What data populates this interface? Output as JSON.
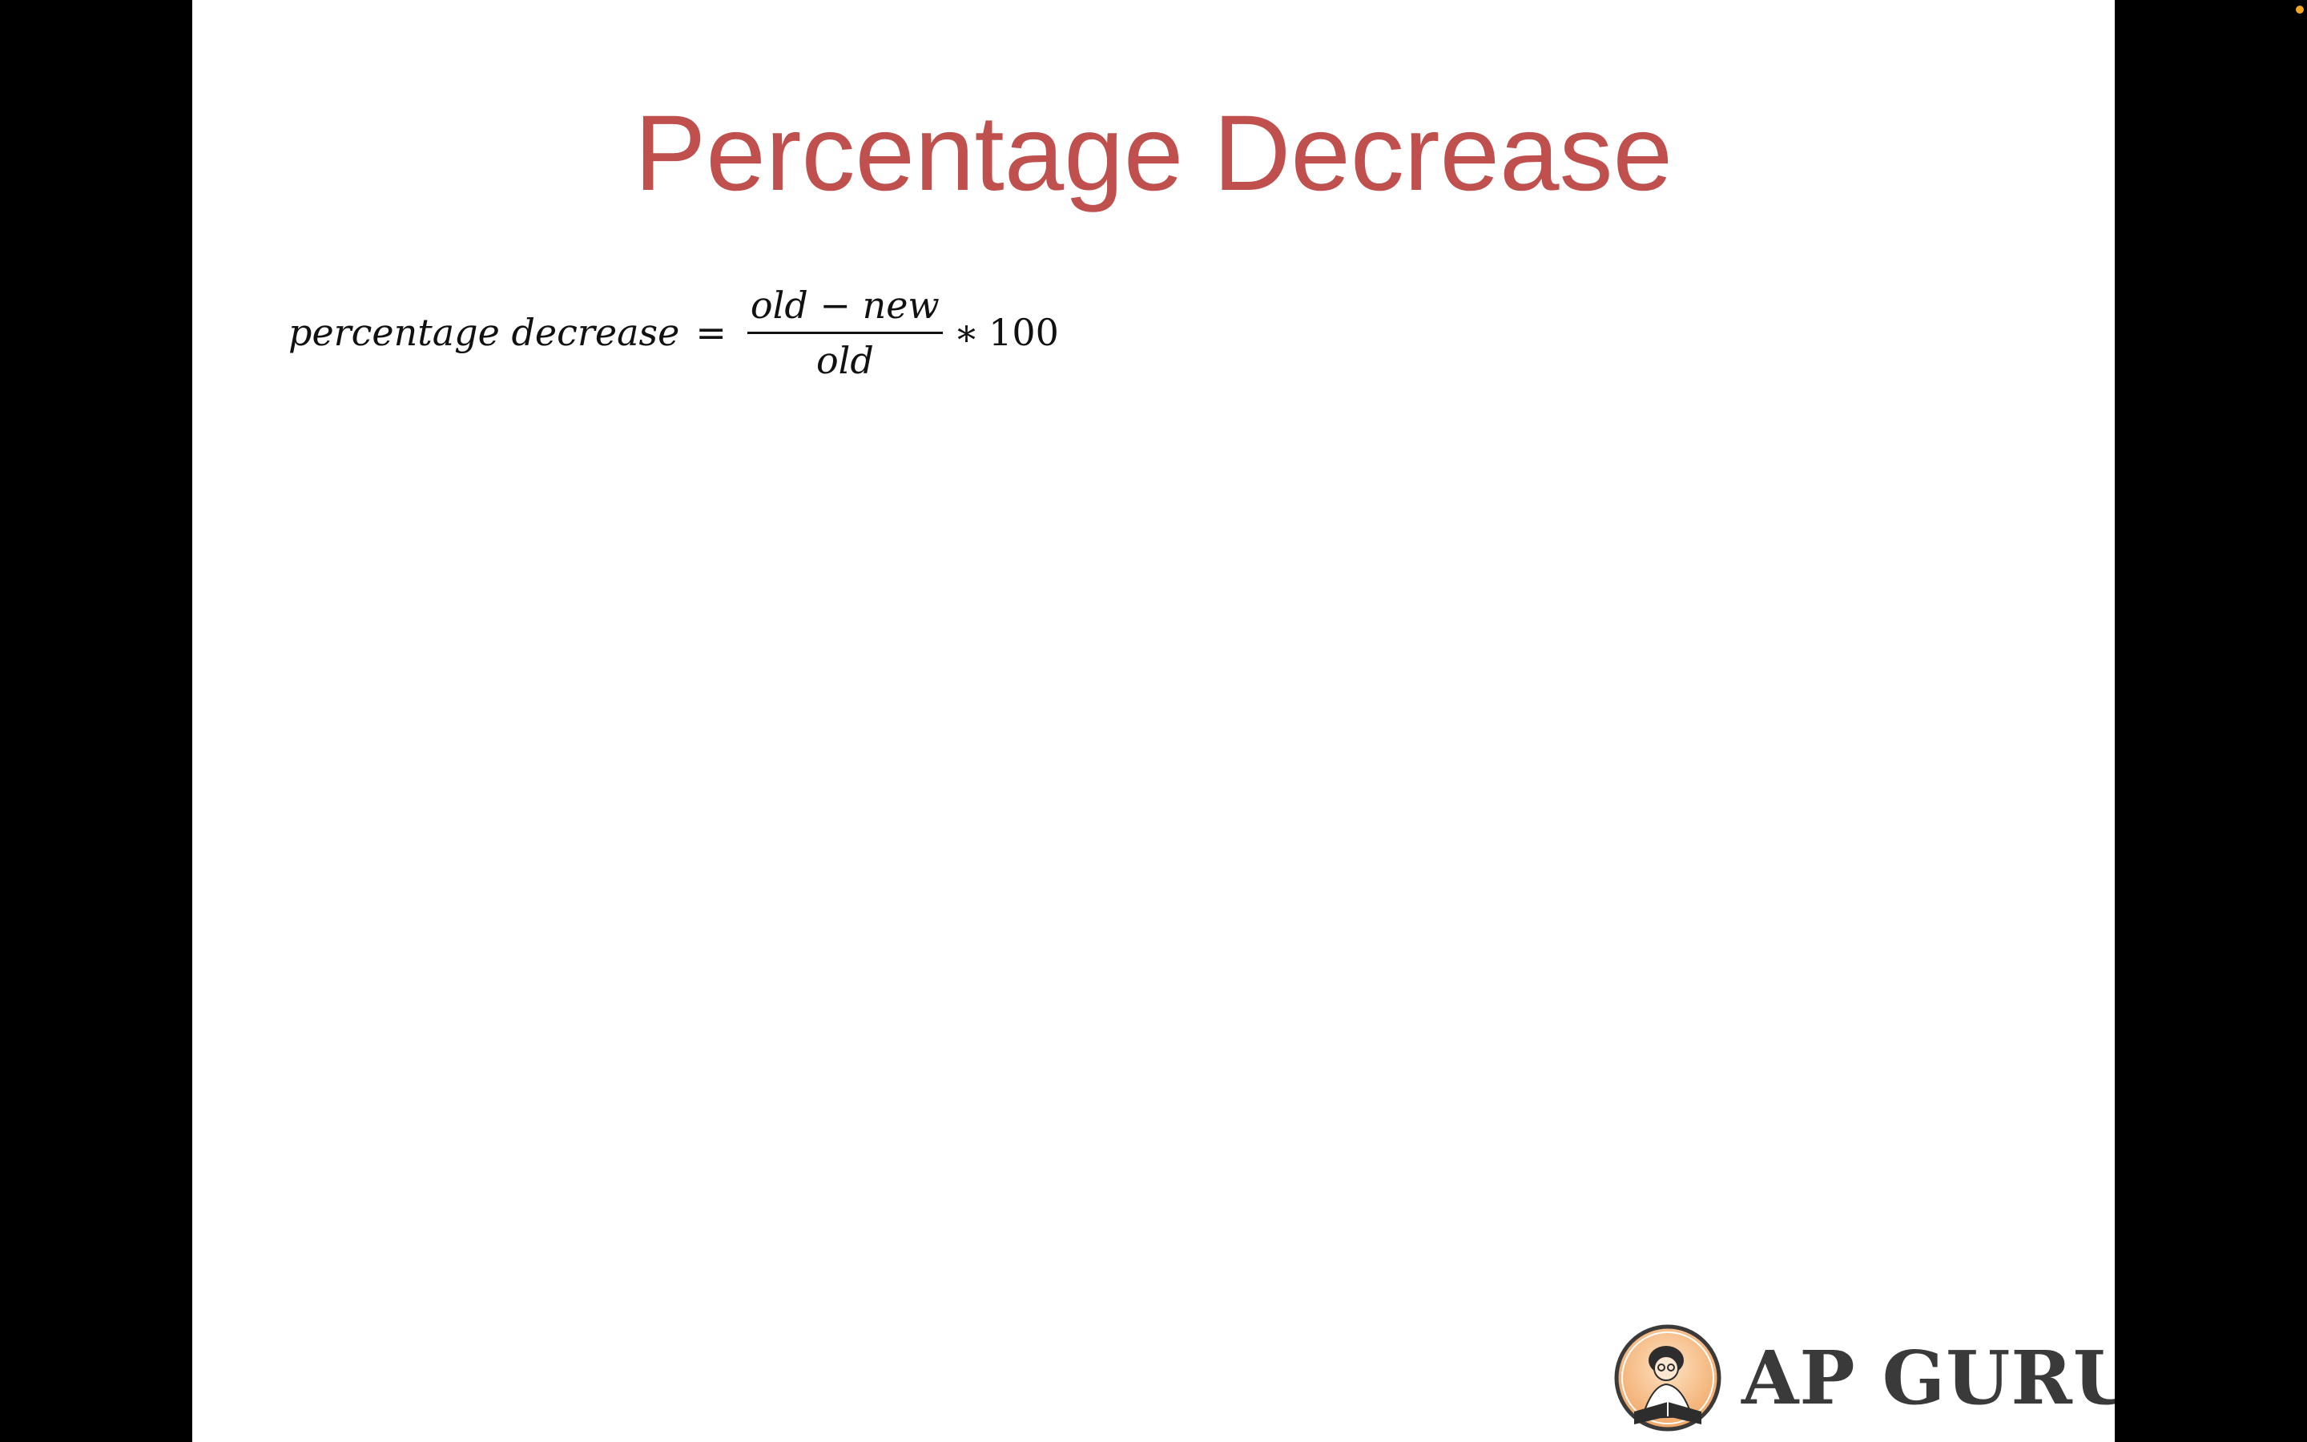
{
  "slide": {
    "title": "Percentage Decrease",
    "formula": {
      "lhs": "percentage decrease",
      "equals": "=",
      "numerator_left": "old",
      "numerator_op": "−",
      "numerator_right": "new",
      "denominator": "old",
      "multiply": "∗",
      "multiplier": "100"
    },
    "logo": {
      "text": "AP GURU",
      "badge_icon": "reading-person-badge-icon"
    },
    "colors": {
      "title": "#c0504d",
      "background": "#ffffff",
      "letterbox": "#000000",
      "recording_dot": "#f5a623"
    }
  }
}
